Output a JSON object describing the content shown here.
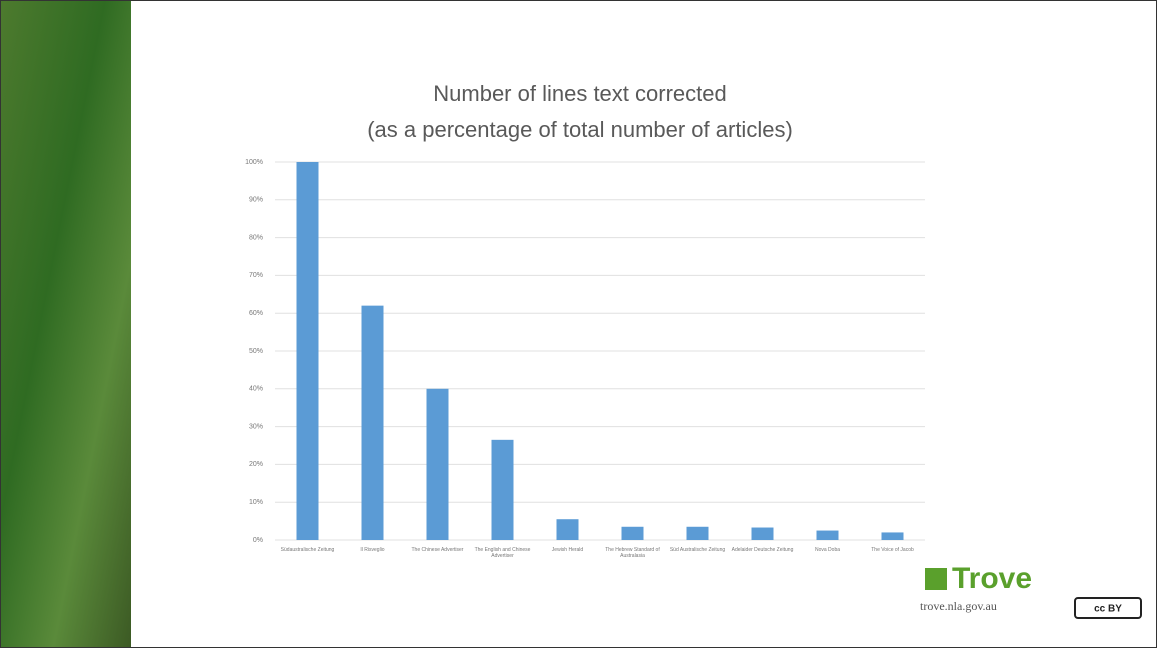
{
  "chart_data": {
    "type": "bar",
    "title": "Number of lines text corrected",
    "subtitle": "(as a percentage of total number of articles)",
    "categories": [
      "Südaustralische Zeitung",
      "Il Risveglio",
      "The Chinese Advertiser",
      "The English and Chinese Advertiser",
      "Jewish Herald",
      "The Hebrew Standard of Australasia",
      "Süd Australische Zeitung",
      "Adelaider Deutsche Zeitung",
      "Nova Doba",
      "The Voice of Jacob"
    ],
    "values": [
      100,
      62,
      40,
      26.5,
      5.5,
      3.5,
      3.5,
      3.3,
      2.5,
      2
    ],
    "color": "#5b9bd5",
    "ylim": [
      0,
      100
    ],
    "yticks": [
      {
        "value": 0,
        "label": "0%"
      },
      {
        "value": 10,
        "label": "10%"
      },
      {
        "value": 20,
        "label": "20%"
      },
      {
        "value": 30,
        "label": "30%"
      },
      {
        "value": 40,
        "label": "40%"
      },
      {
        "value": 50,
        "label": "50%"
      },
      {
        "value": 60,
        "label": "60%"
      },
      {
        "value": 70,
        "label": "70%"
      },
      {
        "value": 80,
        "label": "80%"
      },
      {
        "value": 90,
        "label": "90%"
      },
      {
        "value": 100,
        "label": "100%"
      }
    ],
    "grid": true
  },
  "logo": {
    "name": "Trove",
    "url": "trove.nla.gov.au",
    "license": "cc BY"
  }
}
